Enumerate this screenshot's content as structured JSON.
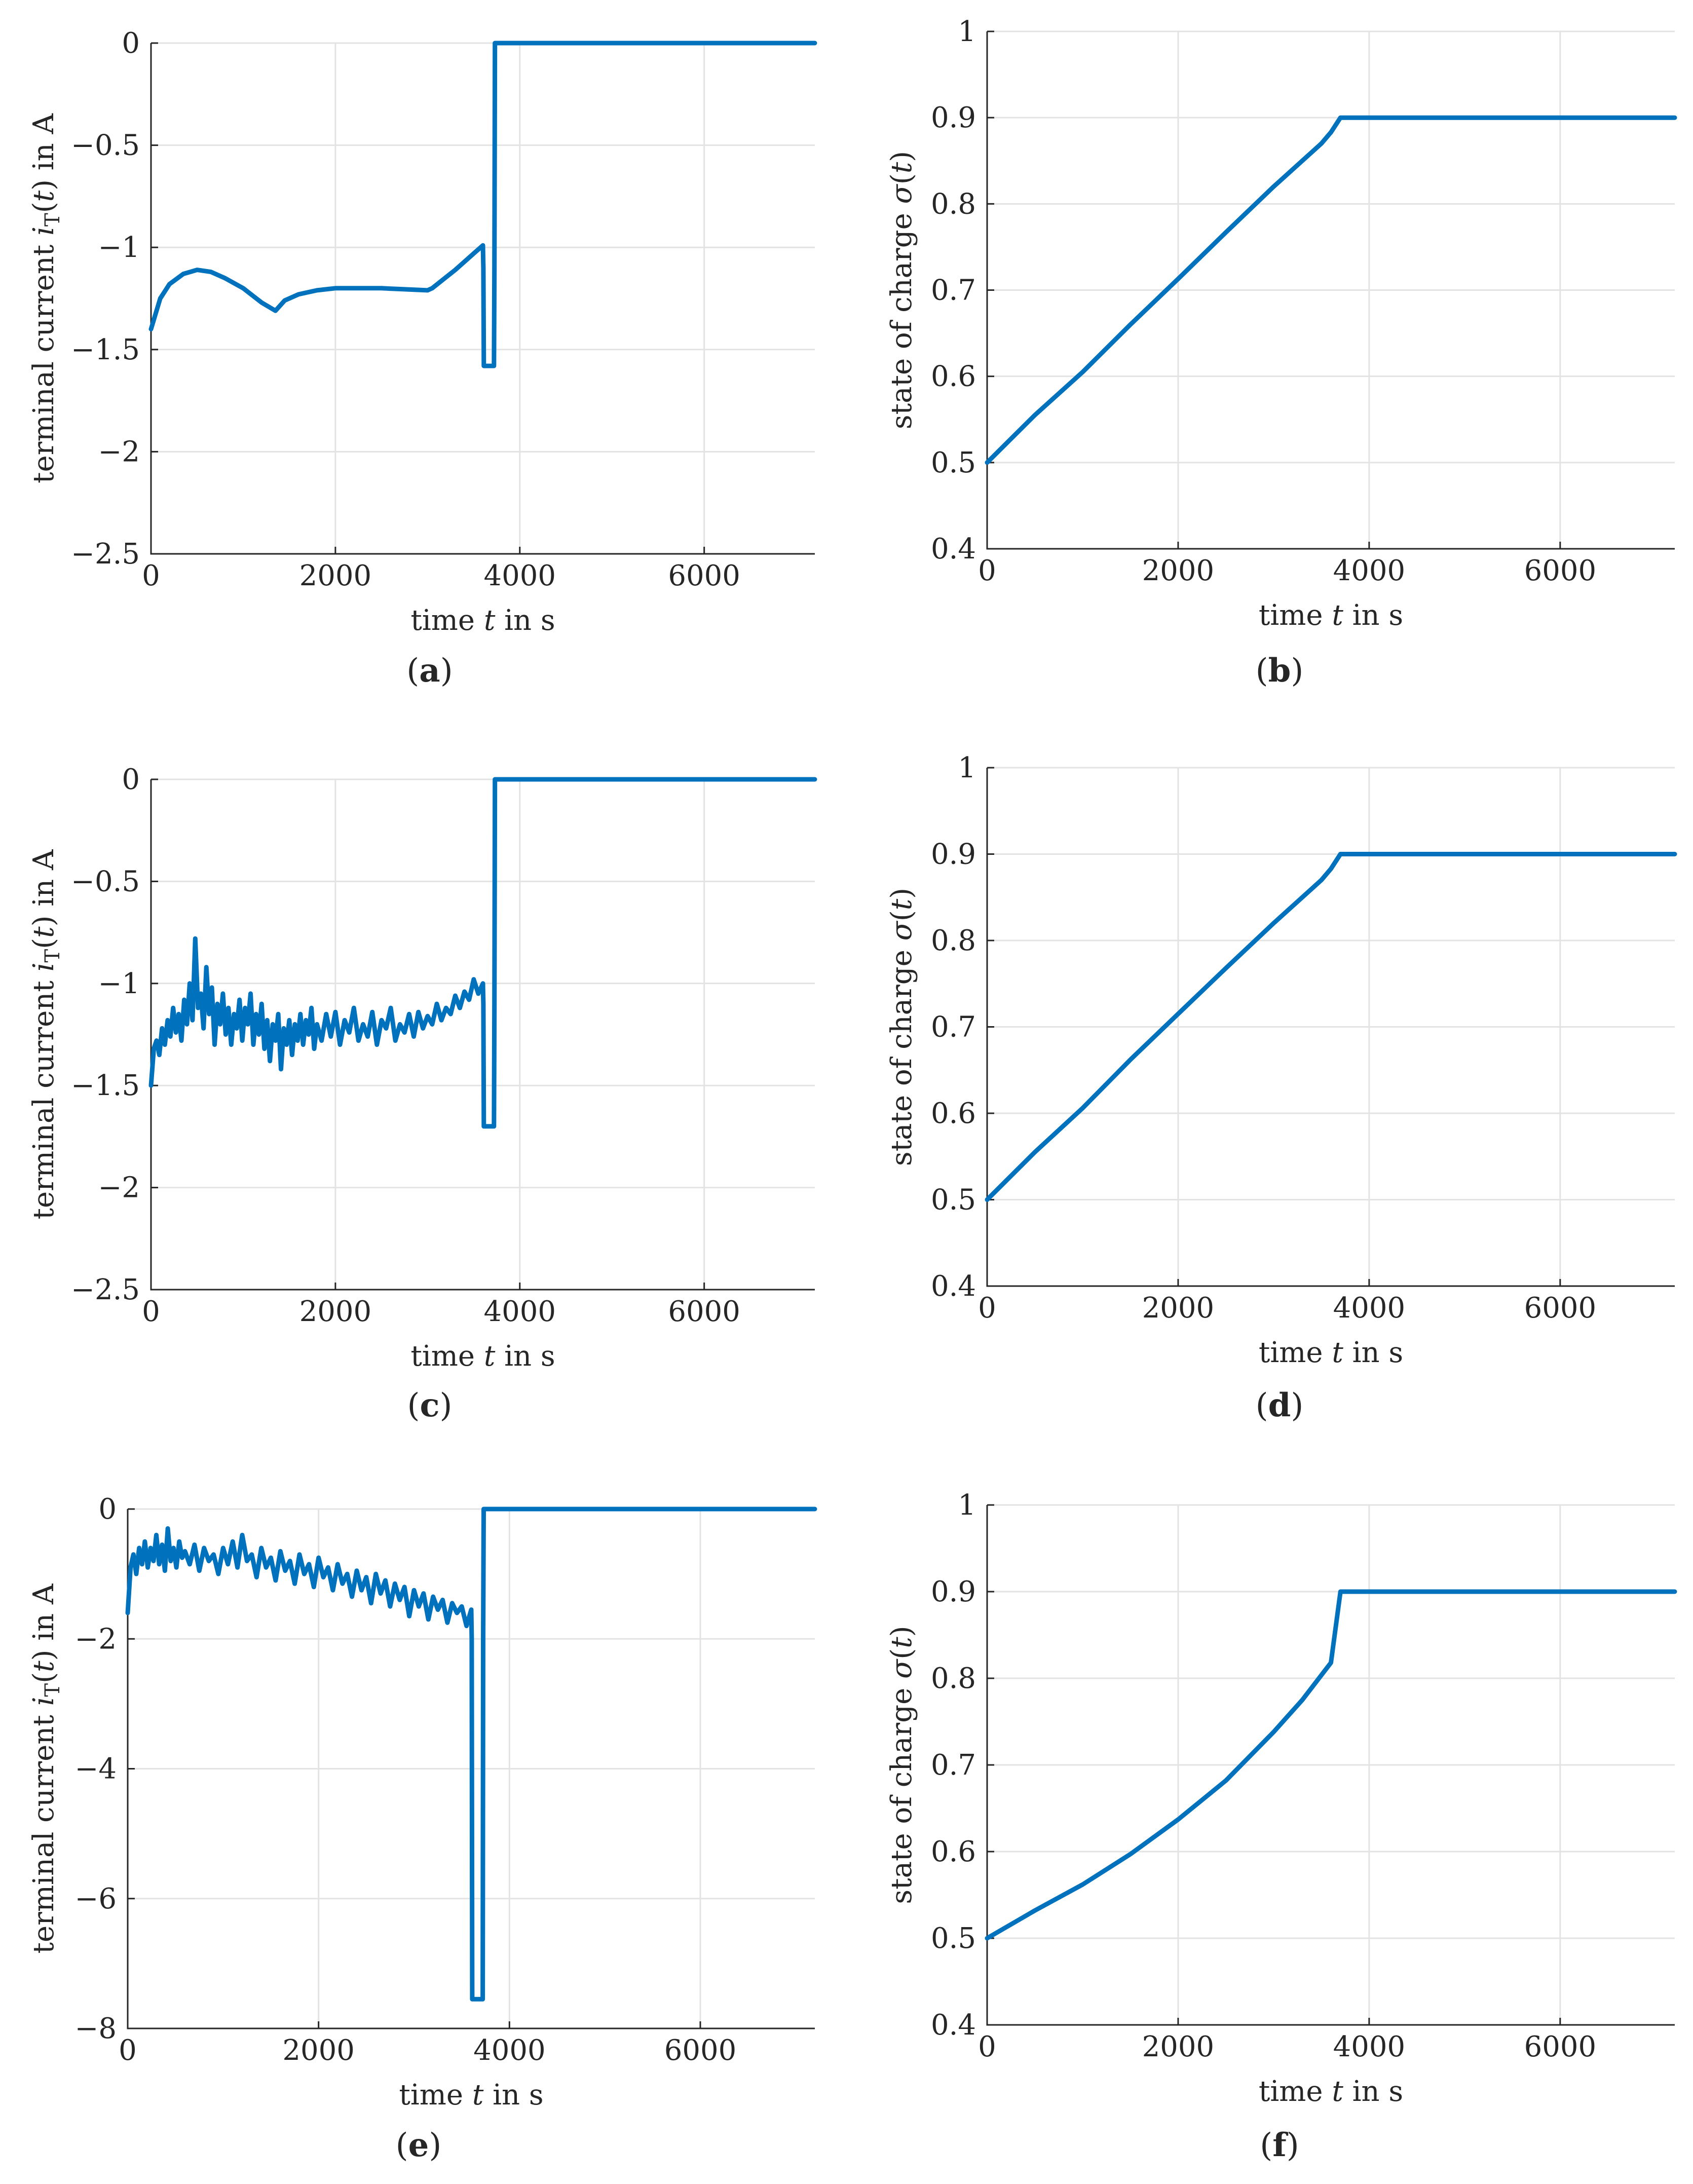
{
  "figure": {
    "panel_labels": [
      "(a)",
      "(b)",
      "(c)",
      "(d)",
      "(e)",
      "(f)"
    ]
  },
  "chart_data": [
    {
      "id": "a",
      "type": "line",
      "xlabel": "time t in s",
      "ylabel": "terminal current i_T(t) in A",
      "xlim": [
        0,
        7200
      ],
      "ylim": [
        -2.5,
        0
      ],
      "xticks": [
        0,
        2000,
        4000,
        6000
      ],
      "yticks": [
        -2.5,
        -2,
        -1.5,
        -1,
        -0.5,
        0
      ],
      "ytick_labels": [
        "−2.5",
        "−2",
        "−1.5",
        "−1",
        "−0.5",
        "0"
      ],
      "grid": true,
      "series": [
        {
          "name": "terminal current",
          "color": "#0072bd",
          "x": [
            0,
            100,
            200,
            350,
            500,
            650,
            800,
            1000,
            1200,
            1350,
            1450,
            1600,
            1800,
            2000,
            2500,
            3000,
            3050,
            3300,
            3500,
            3600,
            3605,
            3610,
            3720,
            3725,
            3730,
            7200
          ],
          "y": [
            -1.4,
            -1.25,
            -1.18,
            -1.13,
            -1.11,
            -1.12,
            -1.15,
            -1.2,
            -1.27,
            -1.31,
            -1.26,
            -1.23,
            -1.21,
            -1.2,
            -1.2,
            -1.21,
            -1.2,
            -1.11,
            -1.03,
            -0.99,
            -1.1,
            -1.58,
            -1.58,
            -1.1,
            0,
            0
          ]
        }
      ]
    },
    {
      "id": "b",
      "type": "line",
      "xlabel": "time t in s",
      "ylabel": "state of charge σ(t)",
      "xlim": [
        0,
        7200
      ],
      "ylim": [
        0.4,
        1
      ],
      "xticks": [
        0,
        2000,
        4000,
        6000
      ],
      "yticks": [
        0.4,
        0.5,
        0.6,
        0.7,
        0.8,
        0.9,
        1
      ],
      "ytick_labels": [
        "0.4",
        "0.5",
        "0.6",
        "0.7",
        "0.8",
        "0.9",
        "1"
      ],
      "grid": true,
      "series": [
        {
          "name": "state of charge",
          "color": "#0072bd",
          "x": [
            0,
            500,
            1000,
            1500,
            2000,
            2500,
            3000,
            3500,
            3600,
            3700,
            7200
          ],
          "y": [
            0.5,
            0.555,
            0.605,
            0.66,
            0.713,
            0.767,
            0.82,
            0.87,
            0.883,
            0.9,
            0.9
          ]
        }
      ]
    },
    {
      "id": "c",
      "type": "line",
      "xlabel": "time t in s",
      "ylabel": "terminal current i_T(t) in A",
      "xlim": [
        0,
        7200
      ],
      "ylim": [
        -2.5,
        0
      ],
      "xticks": [
        0,
        2000,
        4000,
        6000
      ],
      "yticks": [
        -2.5,
        -2,
        -1.5,
        -1,
        -0.5,
        0
      ],
      "ytick_labels": [
        "−2.5",
        "−2",
        "−1.5",
        "−1",
        "−0.5",
        "0"
      ],
      "grid": true,
      "series": [
        {
          "name": "terminal current (noisy)",
          "color": "#0072bd",
          "x": [
            0,
            30,
            60,
            90,
            120,
            150,
            180,
            210,
            240,
            270,
            300,
            330,
            360,
            390,
            420,
            450,
            480,
            510,
            540,
            570,
            600,
            630,
            660,
            690,
            720,
            750,
            780,
            810,
            840,
            870,
            900,
            930,
            960,
            990,
            1020,
            1050,
            1080,
            1110,
            1140,
            1170,
            1200,
            1230,
            1260,
            1290,
            1320,
            1350,
            1380,
            1410,
            1440,
            1470,
            1500,
            1530,
            1560,
            1590,
            1620,
            1650,
            1680,
            1710,
            1740,
            1770,
            1800,
            1850,
            1900,
            1950,
            2000,
            2050,
            2100,
            2150,
            2200,
            2250,
            2300,
            2350,
            2400,
            2450,
            2500,
            2550,
            2600,
            2650,
            2700,
            2750,
            2800,
            2850,
            2900,
            2950,
            3000,
            3050,
            3100,
            3150,
            3200,
            3250,
            3300,
            3350,
            3400,
            3450,
            3500,
            3550,
            3600,
            3605,
            3610,
            3720,
            3725,
            3730,
            7200
          ],
          "y": [
            -1.5,
            -1.32,
            -1.28,
            -1.35,
            -1.22,
            -1.3,
            -1.18,
            -1.26,
            -1.12,
            -1.24,
            -1.15,
            -1.28,
            -1.08,
            -1.2,
            -1.0,
            -1.18,
            -0.78,
            -1.12,
            -1.05,
            -1.22,
            -0.92,
            -1.15,
            -1.02,
            -1.3,
            -1.1,
            -1.2,
            -1.05,
            -1.25,
            -1.12,
            -1.3,
            -1.15,
            -1.22,
            -1.08,
            -1.28,
            -1.12,
            -1.2,
            -1.05,
            -1.3,
            -1.15,
            -1.25,
            -1.1,
            -1.32,
            -1.18,
            -1.38,
            -1.2,
            -1.28,
            -1.15,
            -1.42,
            -1.22,
            -1.3,
            -1.18,
            -1.35,
            -1.2,
            -1.28,
            -1.15,
            -1.3,
            -1.18,
            -1.25,
            -1.12,
            -1.32,
            -1.2,
            -1.28,
            -1.15,
            -1.26,
            -1.14,
            -1.3,
            -1.18,
            -1.24,
            -1.12,
            -1.28,
            -1.2,
            -1.26,
            -1.14,
            -1.3,
            -1.18,
            -1.22,
            -1.12,
            -1.28,
            -1.2,
            -1.24,
            -1.15,
            -1.26,
            -1.14,
            -1.22,
            -1.16,
            -1.2,
            -1.1,
            -1.18,
            -1.12,
            -1.15,
            -1.06,
            -1.12,
            -1.04,
            -1.08,
            -0.98,
            -1.05,
            -1.0,
            -1.1,
            -1.7,
            -1.7,
            -1.1,
            0,
            0
          ]
        }
      ]
    },
    {
      "id": "d",
      "type": "line",
      "xlabel": "time t in s",
      "ylabel": "state of charge σ(t)",
      "xlim": [
        0,
        7200
      ],
      "ylim": [
        0.4,
        1
      ],
      "xticks": [
        0,
        2000,
        4000,
        6000
      ],
      "yticks": [
        0.4,
        0.5,
        0.6,
        0.7,
        0.8,
        0.9,
        1
      ],
      "ytick_labels": [
        "0.4",
        "0.5",
        "0.6",
        "0.7",
        "0.8",
        "0.9",
        "1"
      ],
      "grid": true,
      "series": [
        {
          "name": "state of charge",
          "color": "#0072bd",
          "x": [
            0,
            500,
            1000,
            1500,
            2000,
            2500,
            3000,
            3500,
            3600,
            3700,
            7200
          ],
          "y": [
            0.5,
            0.555,
            0.606,
            0.662,
            0.715,
            0.768,
            0.82,
            0.87,
            0.883,
            0.9,
            0.9
          ]
        }
      ]
    },
    {
      "id": "e",
      "type": "line",
      "xlabel": "time t in s",
      "ylabel": "terminal current i_T(t) in A",
      "xlim": [
        0,
        7200
      ],
      "ylim": [
        -8,
        0
      ],
      "xticks": [
        0,
        2000,
        4000,
        6000
      ],
      "yticks": [
        -8,
        -6,
        -4,
        -2,
        0
      ],
      "ytick_labels": [
        "−8",
        "−6",
        "−4",
        "−2",
        "0"
      ],
      "grid": true,
      "series": [
        {
          "name": "terminal current (noisy)",
          "color": "#0072bd",
          "x": [
            0,
            30,
            60,
            90,
            120,
            150,
            180,
            210,
            240,
            270,
            300,
            330,
            360,
            390,
            420,
            450,
            480,
            510,
            540,
            570,
            600,
            650,
            700,
            750,
            800,
            850,
            900,
            950,
            1000,
            1050,
            1100,
            1150,
            1200,
            1250,
            1300,
            1350,
            1400,
            1450,
            1500,
            1550,
            1600,
            1650,
            1700,
            1750,
            1800,
            1850,
            1900,
            1950,
            2000,
            2050,
            2100,
            2150,
            2200,
            2250,
            2300,
            2350,
            2400,
            2450,
            2500,
            2550,
            2600,
            2650,
            2700,
            2750,
            2800,
            2850,
            2900,
            2950,
            3000,
            3050,
            3100,
            3150,
            3200,
            3250,
            3300,
            3350,
            3400,
            3450,
            3500,
            3550,
            3600,
            3605,
            3610,
            3720,
            3725,
            3730,
            7200
          ],
          "y": [
            -1.6,
            -0.9,
            -0.7,
            -1.0,
            -0.6,
            -0.85,
            -0.5,
            -0.9,
            -0.6,
            -0.8,
            -0.4,
            -0.85,
            -0.55,
            -0.95,
            -0.3,
            -0.8,
            -0.6,
            -0.9,
            -0.5,
            -0.75,
            -0.65,
            -0.85,
            -0.55,
            -0.95,
            -0.6,
            -0.8,
            -0.7,
            -1.0,
            -0.6,
            -0.85,
            -0.5,
            -0.9,
            -0.4,
            -0.8,
            -0.7,
            -1.05,
            -0.6,
            -0.9,
            -0.75,
            -1.1,
            -0.65,
            -0.95,
            -0.8,
            -1.15,
            -0.7,
            -1.0,
            -0.85,
            -1.2,
            -0.75,
            -1.05,
            -0.9,
            -1.25,
            -0.85,
            -1.15,
            -1.0,
            -1.35,
            -0.95,
            -1.25,
            -1.05,
            -1.45,
            -1.0,
            -1.3,
            -1.1,
            -1.5,
            -1.15,
            -1.4,
            -1.2,
            -1.65,
            -1.25,
            -1.5,
            -1.3,
            -1.7,
            -1.35,
            -1.55,
            -1.4,
            -1.75,
            -1.45,
            -1.6,
            -1.5,
            -1.8,
            -1.55,
            -2.0,
            -7.55,
            -7.55,
            -2.0,
            0,
            0
          ]
        }
      ]
    },
    {
      "id": "f",
      "type": "line",
      "xlabel": "time t in s",
      "ylabel": "state of charge σ(t)",
      "xlim": [
        0,
        7200
      ],
      "ylim": [
        0.4,
        1
      ],
      "xticks": [
        0,
        2000,
        4000,
        6000
      ],
      "yticks": [
        0.4,
        0.5,
        0.6,
        0.7,
        0.8,
        0.9,
        1
      ],
      "ytick_labels": [
        "0.4",
        "0.5",
        "0.6",
        "0.7",
        "0.8",
        "0.9",
        "1"
      ],
      "grid": true,
      "series": [
        {
          "name": "state of charge",
          "color": "#0072bd",
          "x": [
            0,
            500,
            1000,
            1500,
            2000,
            2500,
            3000,
            3300,
            3600,
            3700,
            7200
          ],
          "y": [
            0.5,
            0.532,
            0.562,
            0.597,
            0.637,
            0.682,
            0.738,
            0.775,
            0.818,
            0.9,
            0.9
          ]
        }
      ]
    }
  ]
}
